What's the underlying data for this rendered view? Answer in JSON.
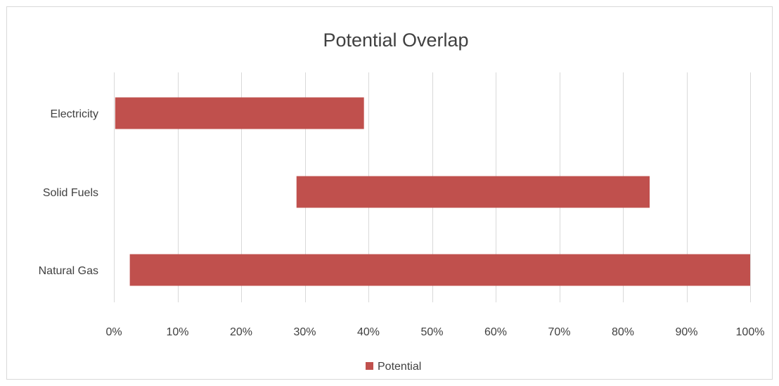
{
  "chart_data": {
    "type": "bar",
    "orientation": "horizontal",
    "stacked": true,
    "title": "Potential Overlap",
    "categories": [
      "Electricity",
      "Solid Fuels",
      "Natural  Gas"
    ],
    "series": [
      {
        "name": "",
        "role": "invisible-offset",
        "values": [
          0.002,
          0.287,
          0.025
        ]
      },
      {
        "name": "Potential",
        "color": "#c0504d",
        "values": [
          0.391,
          0.555,
          0.975
        ]
      }
    ],
    "xlim": [
      0,
      1
    ],
    "x_ticks": [
      "0%",
      "10%",
      "20%",
      "30%",
      "40%",
      "50%",
      "60%",
      "70%",
      "80%",
      "90%",
      "100%"
    ],
    "grid": "vertical",
    "legend": {
      "position": "bottom",
      "entries": [
        "Potential"
      ]
    }
  }
}
